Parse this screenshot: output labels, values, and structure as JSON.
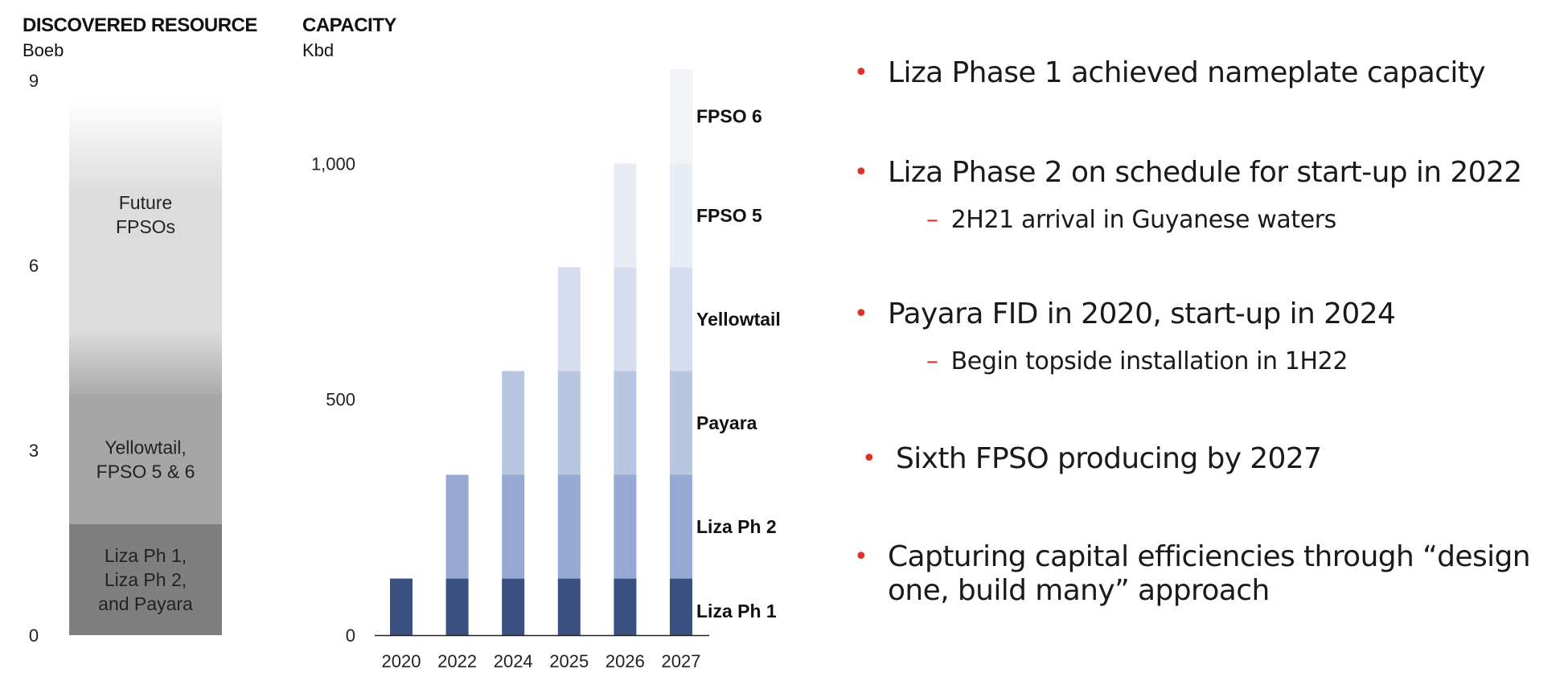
{
  "chart_data": [
    {
      "type": "bar",
      "title": "DISCOVERED RESOURCE",
      "ylabel": "Boeb",
      "ylim": [
        0,
        9
      ],
      "yticks": [
        "0",
        "3",
        "6",
        "9"
      ],
      "stacked": true,
      "segments": [
        {
          "name": "Liza Ph 1, Liza Ph 2, and Payara",
          "lines": [
            "Liza Ph 1,",
            "Liza Ph 2,",
            "and Payara"
          ],
          "from": 0,
          "to": 1.8,
          "color": "#7f7f7f"
        },
        {
          "name": "Yellowtail, FPSO 5 & 6",
          "lines": [
            "Yellowtail,",
            "FPSO 5 & 6"
          ],
          "from": 1.8,
          "to": 3.9,
          "color": "#a6a6a6"
        },
        {
          "name": "Future FPSOs",
          "lines": [
            "Future",
            "FPSOs"
          ],
          "from": 3.9,
          "to": 8.7,
          "color": "#dcdcdc"
        }
      ]
    },
    {
      "type": "bar",
      "title": "CAPACITY",
      "ylabel": "Kbd",
      "ylim": [
        0,
        1200
      ],
      "yticks": [
        {
          "value": 0,
          "label": "0"
        },
        {
          "value": 500,
          "label": "500"
        },
        {
          "value": 1000,
          "label": "1,000"
        }
      ],
      "stacked": true,
      "categories": [
        "2020",
        "2022",
        "2024",
        "2025",
        "2026",
        "2027"
      ],
      "series": [
        {
          "name": "Liza Ph 1",
          "color": "#3a5080",
          "values": [
            120,
            120,
            120,
            120,
            120,
            120
          ]
        },
        {
          "name": "Liza Ph 2",
          "color": "#95a9d2",
          "values": [
            0,
            220,
            220,
            220,
            220,
            220
          ]
        },
        {
          "name": "Payara",
          "color": "#b8c6e2",
          "values": [
            0,
            0,
            220,
            220,
            220,
            220
          ]
        },
        {
          "name": "Yellowtail",
          "color": "#d5ddee",
          "values": [
            0,
            0,
            0,
            220,
            220,
            220
          ]
        },
        {
          "name": "FPSO 5",
          "color": "#e8ecf4",
          "values": [
            0,
            0,
            0,
            0,
            220,
            220
          ]
        },
        {
          "name": "FPSO 6",
          "color": "#f1f3f7",
          "values": [
            0,
            0,
            0,
            0,
            0,
            200
          ]
        }
      ]
    }
  ],
  "bullets": [
    {
      "text": "Liza Phase 1 achieved nameplate capacity",
      "subs": []
    },
    {
      "text": "Liza Phase 2 on schedule for start-up in 2022",
      "subs": [
        "2H21 arrival in Guyanese waters"
      ]
    },
    {
      "text": "Payara FID in 2020, start-up in 2024",
      "subs": [
        "Begin topside installation in 1H22"
      ]
    },
    {
      "text": "Sixth FPSO producing by 2027",
      "subs": []
    },
    {
      "text": "Capturing capital efficiencies through “design one, build many” approach",
      "subs": []
    }
  ],
  "bullet_marker": "•",
  "sub_marker": "–",
  "colors": {
    "accent": "#e0302a"
  }
}
